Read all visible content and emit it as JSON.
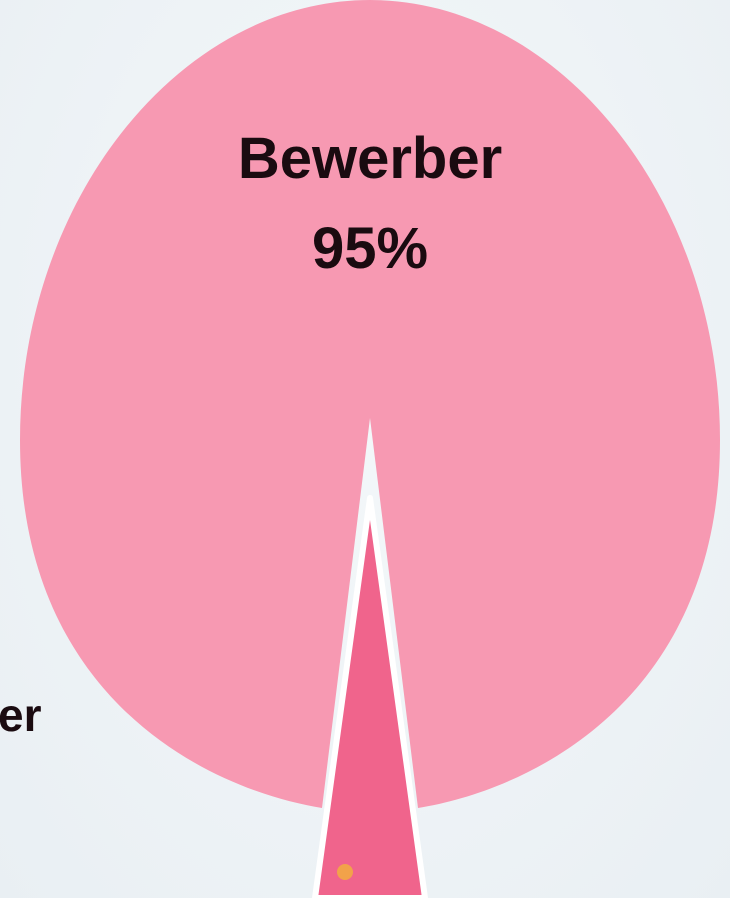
{
  "chart_data": {
    "type": "pie",
    "slices": [
      {
        "label": "Bewerber",
        "value": 95,
        "value_label": "95%",
        "color": "#f799b2"
      },
      {
        "label": "",
        "value": 5,
        "value_label": "",
        "color": "#f0648c"
      }
    ],
    "small_slice_accent_color": "#f2a24a"
  },
  "offscreen_label_fragment": "er"
}
